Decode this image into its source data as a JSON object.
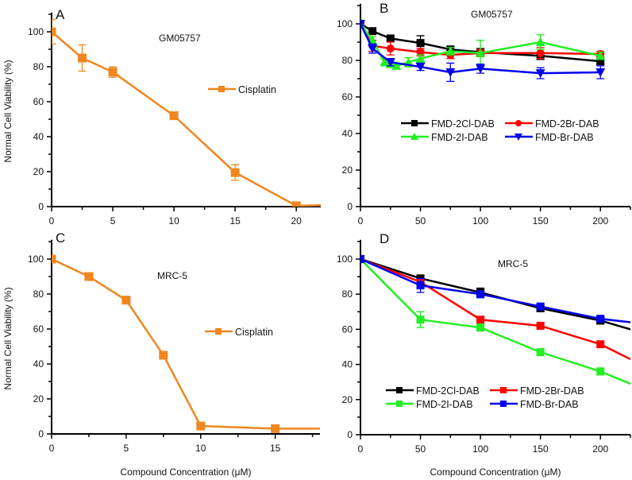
{
  "xlabel": "Compound Concentration (μM)",
  "ylabel": "Normal Cell Viability (%)",
  "chart_data": [
    {
      "panel": "A",
      "type": "line",
      "annotation": "GM05757",
      "xlim": [
        0,
        22
      ],
      "ylim": [
        0,
        111
      ],
      "xticks": [
        0,
        5,
        10,
        15,
        20
      ],
      "yticks": [
        0,
        20,
        40,
        60,
        80,
        100
      ],
      "legend_placement": "right-middle",
      "series": [
        {
          "name": "Cisplatin",
          "color": "#F0861E",
          "marker": "square",
          "x": [
            0,
            2.5,
            5,
            10,
            15,
            20
          ],
          "y": [
            100,
            85,
            77,
            52,
            19.5,
            0.5
          ],
          "yerr": [
            7,
            7.5,
            3,
            1,
            4.5,
            0.5
          ],
          "line_continues_to": [
            22,
            0.8
          ]
        }
      ]
    },
    {
      "panel": "B",
      "type": "line",
      "annotation": "GM05757",
      "xlim": [
        0,
        225
      ],
      "ylim": [
        0,
        111
      ],
      "xticks": [
        0,
        50,
        100,
        150,
        200
      ],
      "yticks": [
        0,
        20,
        40,
        60,
        80,
        100
      ],
      "legend_placement": "center",
      "series": [
        {
          "name": "FMD-2Cl-DAB",
          "color": "#000000",
          "marker": "square",
          "x": [
            0,
            10,
            25,
            50,
            75,
            100,
            150,
            200
          ],
          "y": [
            100,
            96,
            92,
            89.5,
            86,
            84.5,
            82.5,
            79.5
          ],
          "yerr": [
            1,
            1,
            1.5,
            4,
            1.5,
            2,
            2,
            1.5
          ]
        },
        {
          "name": "FMD-2Br-DAB",
          "color": "#FF0000",
          "marker": "circle",
          "x": [
            0,
            10,
            25,
            50,
            75,
            100,
            150,
            200
          ],
          "y": [
            100,
            88,
            86.5,
            84.5,
            83,
            84,
            84,
            83.5
          ],
          "yerr": [
            1,
            3,
            3.5,
            2,
            2,
            2,
            3,
            1.5
          ]
        },
        {
          "name": "FMD-2I-DAB",
          "color": "#22EE22",
          "marker": "triangle-up",
          "x": [
            0,
            10,
            20,
            25,
            30,
            40,
            50,
            75,
            100,
            150,
            200
          ],
          "y": [
            100,
            91,
            79,
            78,
            77,
            79,
            81,
            85,
            84,
            90,
            82.5
          ],
          "yerr": [
            2,
            2,
            2,
            1.5,
            1.5,
            2.5,
            2,
            2,
            7,
            4,
            2
          ]
        },
        {
          "name": "FMD-Br-DAB",
          "color": "#0000EE",
          "marker": "triangle-down",
          "x": [
            0,
            10,
            25,
            50,
            75,
            100,
            150,
            200
          ],
          "y": [
            100,
            86.5,
            79,
            76.5,
            73.5,
            75.5,
            73,
            73.5
          ],
          "yerr": [
            1,
            2.5,
            2,
            2,
            5,
            2.5,
            3,
            3.5
          ]
        }
      ]
    },
    {
      "panel": "C",
      "type": "line",
      "annotation": "MRC-5",
      "xlim": [
        0,
        18
      ],
      "ylim": [
        0,
        111
      ],
      "xticks": [
        0,
        5,
        10,
        15
      ],
      "yticks": [
        0,
        20,
        40,
        60,
        80,
        100
      ],
      "legend_placement": "right-middle",
      "series": [
        {
          "name": "Cisplatin",
          "color": "#F0861E",
          "marker": "square",
          "x": [
            0,
            2.5,
            5,
            7.5,
            10,
            15
          ],
          "y": [
            100,
            90,
            76.5,
            45,
            4.5,
            3
          ],
          "yerr": [
            1,
            1,
            1.5,
            1.5,
            1,
            0.5
          ],
          "line_continues_to": [
            18,
            3
          ]
        }
      ]
    },
    {
      "panel": "D",
      "type": "line",
      "annotation": "MRC-5",
      "xlim": [
        0,
        225
      ],
      "ylim": [
        0,
        111
      ],
      "xticks": [
        0,
        50,
        100,
        150,
        200
      ],
      "yticks": [
        0,
        20,
        40,
        60,
        80,
        100
      ],
      "legend_placement": "bottom-center",
      "series": [
        {
          "name": "FMD-2Cl-DAB",
          "color": "#000000",
          "marker": "square",
          "x": [
            0,
            50,
            100,
            150,
            200
          ],
          "y": [
            100,
            89,
            81,
            72,
            65
          ],
          "yerr": [
            1,
            1.5,
            2.5,
            1.5,
            2
          ],
          "line_continues_to": [
            225,
            60
          ]
        },
        {
          "name": "FMD-2Br-DAB",
          "color": "#FF0000",
          "marker": "square",
          "x": [
            0,
            50,
            100,
            150,
            200
          ],
          "y": [
            100,
            87,
            65.5,
            62,
            51.5
          ],
          "yerr": [
            1,
            1.5,
            1,
            1,
            1.2
          ],
          "line_continues_to": [
            225,
            43
          ]
        },
        {
          "name": "FMD-2I-DAB",
          "color": "#22EE22",
          "marker": "square",
          "x": [
            0,
            50,
            100,
            150,
            200
          ],
          "y": [
            100,
            65.5,
            61,
            47,
            36
          ],
          "yerr": [
            1,
            4.5,
            1.5,
            1,
            2
          ],
          "line_continues_to": [
            225,
            29
          ]
        },
        {
          "name": "FMD-Br-DAB",
          "color": "#0000EE",
          "marker": "square",
          "x": [
            0,
            50,
            100,
            150,
            200
          ],
          "y": [
            100,
            85,
            80,
            73,
            66
          ],
          "yerr": [
            2,
            4,
            2,
            1.5,
            1.5
          ],
          "line_continues_to": [
            225,
            64
          ]
        }
      ]
    }
  ]
}
